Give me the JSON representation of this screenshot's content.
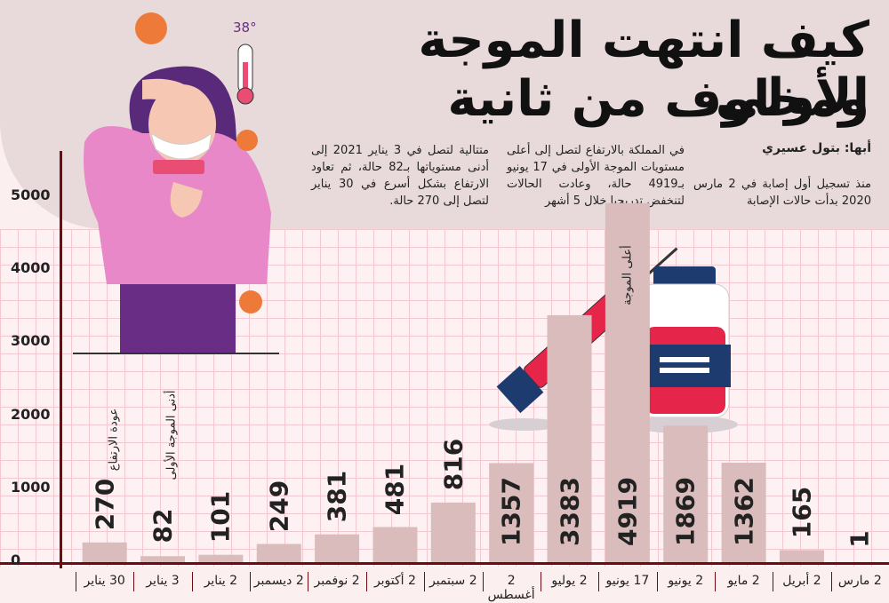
{
  "title_line1": "كيف انتهت الموجة الأولى",
  "title_line2": "ومخاوف من ثانية",
  "byline": "أبها: بتول عسيري",
  "paragraphs": [
    "منذ تسجيل أول إصابة في 2 مارس 2020 بدأت حالات الإصابة",
    "في المملكة بالارتفاع لتصل إلى أعلى مستويات الموجة الأولى في 17 يونيو بـ4919 حالة، وعادت الحالات لتنخفض تدريجيا خلال 5 أشهر",
    "متتالية لتصل في 3 يناير 2021 إلى أدنى مستوياتها بـ82 حالة، ثم تعاود الارتفاع بشكل أسرع في 30 يناير لتصل إلى 270 حالة."
  ],
  "illustration": {
    "thermometer_label": "38°",
    "icons": [
      "virus-icon",
      "thermometer-icon",
      "face-mask-icon",
      "syringe-icon",
      "vaccine-vial-icon"
    ]
  },
  "colors": {
    "bar": "#d9bcbb",
    "axis": "#6e0b12",
    "header_bg": "#e8dadb",
    "grid": "#f3c9cf"
  },
  "chart_data": {
    "type": "bar",
    "categories": [
      "2 مارس",
      "2 أبريل",
      "2 مايو",
      "2 يونيو",
      "17 يونيو",
      "2 يوليو",
      "2 أغسطس",
      "2 سبتمبر",
      "2 أكتوبر",
      "2 نوفمبر",
      "2 ديسمبر",
      "2 يناير",
      "3 يناير",
      "30 يناير"
    ],
    "values": [
      1,
      165,
      1362,
      1869,
      4919,
      3383,
      1357,
      816,
      481,
      381,
      249,
      101,
      82,
      270
    ],
    "value_labels": [
      "1",
      "165",
      "1362",
      "1869",
      "4919",
      "3383",
      "1357",
      "816",
      "481",
      "381",
      "249",
      "101",
      "82",
      "270"
    ],
    "yticks": [
      "0",
      "1000",
      "2000",
      "3000",
      "4000",
      "5000"
    ],
    "ytick_values": [
      0,
      1000,
      2000,
      3000,
      4000,
      5000
    ],
    "ylim": [
      0,
      5000
    ],
    "annotations": [
      {
        "category": "17 يونيو",
        "text": "أعلى الموجة"
      },
      {
        "category": "3 يناير",
        "text": "أدنى الموجة الأولى"
      },
      {
        "category": "30 يناير",
        "text": "عودة الارتفاع"
      }
    ],
    "grid": true,
    "legend": "none"
  }
}
